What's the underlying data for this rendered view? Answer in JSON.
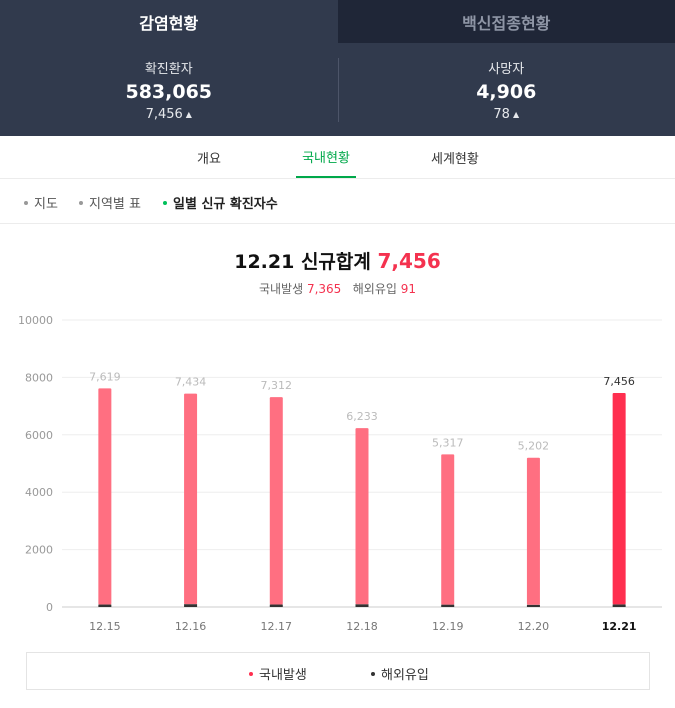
{
  "top_tabs": [
    {
      "label": "감염현황",
      "active": true
    },
    {
      "label": "백신접종현황",
      "active": false
    }
  ],
  "stats": {
    "confirmed": {
      "label": "확진환자",
      "value": "583,065",
      "change": "7,456"
    },
    "deaths": {
      "label": "사망자",
      "value": "4,906",
      "change": "78"
    }
  },
  "sub_tabs": [
    {
      "label": "개요",
      "active": false
    },
    {
      "label": "국내현황",
      "active": true
    },
    {
      "label": "세계현황",
      "active": false
    }
  ],
  "filters": [
    {
      "label": "지도",
      "active": false
    },
    {
      "label": "지역별 표",
      "active": false
    },
    {
      "label": "일별 신규 확진자수",
      "active": true
    }
  ],
  "summary": {
    "title_prefix": "12.21 신규합계",
    "total": "7,456",
    "domestic_label": "국내발생",
    "domestic_value": "7,365",
    "overseas_label": "해외유입",
    "overseas_value": "91"
  },
  "colors": {
    "domestic": "#ff6f81",
    "domestic_highlight": "#ff2f4f",
    "overseas": "#333333",
    "accent_green": "#00a84a",
    "header_bg": "#313a4d"
  },
  "chart_data": {
    "type": "bar",
    "stacked": true,
    "categories": [
      "12.15",
      "12.16",
      "12.17",
      "12.18",
      "12.19",
      "12.20",
      "12.21"
    ],
    "series": [
      {
        "name": "국내발생",
        "values": [
          7534,
          7335,
          7226,
          6136,
          5234,
          5125,
          7365
        ]
      },
      {
        "name": "해외유입",
        "values": [
          85,
          99,
          86,
          97,
          83,
          77,
          91
        ]
      }
    ],
    "totals": [
      7619,
      7434,
      7312,
      6233,
      5317,
      5202,
      7456
    ],
    "total_labels": [
      "7,619",
      "7,434",
      "7,312",
      "6,233",
      "5,317",
      "5,202",
      "7,456"
    ],
    "highlight_index": 6,
    "ylim": [
      0,
      10000
    ],
    "yticks": [
      0,
      2000,
      4000,
      6000,
      8000,
      10000
    ],
    "grid": true,
    "legend": [
      "국내발생",
      "해외유입"
    ],
    "legend_position": "bottom"
  }
}
